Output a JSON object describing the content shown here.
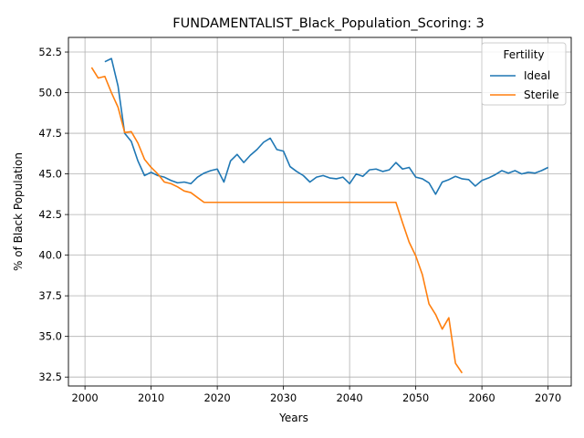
{
  "chart_data": {
    "type": "line",
    "title": "FUNDAMENTALIST_Black_Population_Scoring: 3",
    "xlabel": "Years",
    "ylabel": "% of Black Population",
    "xlim": [
      1997.5,
      2073.5
    ],
    "ylim": [
      31.95,
      53.4
    ],
    "xticks": [
      2000,
      2010,
      2020,
      2030,
      2040,
      2050,
      2060,
      2070
    ],
    "yticks": [
      32.5,
      35.0,
      37.5,
      40.0,
      42.5,
      45.0,
      47.5,
      50.0,
      52.5
    ],
    "ytick_labels": [
      "32.5",
      "35.0",
      "37.5",
      "40.0",
      "42.5",
      "45.0",
      "47.5",
      "50.0",
      "52.5"
    ],
    "grid": true,
    "legend": {
      "title": "Fertility",
      "placement": "top-right"
    },
    "series": [
      {
        "name": "Ideal",
        "color": "#1f77b4",
        "x": [
          2003,
          2004,
          2005,
          2006,
          2007,
          2008,
          2009,
          2010,
          2011,
          2012,
          2013,
          2014,
          2015,
          2016,
          2017,
          2018,
          2019,
          2020,
          2021,
          2022,
          2023,
          2024,
          2025,
          2026,
          2027,
          2028,
          2029,
          2030,
          2031,
          2032,
          2033,
          2034,
          2035,
          2036,
          2037,
          2038,
          2039,
          2040,
          2041,
          2042,
          2043,
          2044,
          2045,
          2046,
          2047,
          2048,
          2049,
          2050,
          2051,
          2052,
          2053,
          2054,
          2055,
          2056,
          2057,
          2058,
          2059,
          2060,
          2061,
          2062,
          2063,
          2064,
          2065,
          2066,
          2067,
          2068,
          2069,
          2070
        ],
        "y": [
          51.9,
          52.1,
          50.4,
          47.5,
          47.0,
          45.8,
          44.9,
          45.1,
          44.9,
          44.8,
          44.6,
          44.45,
          44.5,
          44.4,
          44.8,
          45.05,
          45.2,
          45.3,
          44.5,
          45.8,
          46.2,
          45.7,
          46.15,
          46.5,
          46.95,
          47.2,
          46.5,
          46.4,
          45.45,
          45.15,
          44.9,
          44.5,
          44.8,
          44.9,
          44.75,
          44.7,
          44.8,
          44.4,
          45.0,
          44.85,
          45.25,
          45.3,
          45.15,
          45.25,
          45.7,
          45.3,
          45.4,
          44.8,
          44.7,
          44.45,
          43.75,
          44.5,
          44.65,
          44.85,
          44.7,
          44.65,
          44.25,
          44.6,
          44.75,
          44.95,
          45.2,
          45.05,
          45.2,
          45.0,
          45.1,
          45.05,
          45.2,
          45.4
        ]
      },
      {
        "name": "Sterile",
        "color": "#ff7f0e",
        "x": [
          2001,
          2002,
          2003,
          2004,
          2005,
          2006,
          2007,
          2008,
          2009,
          2010,
          2011,
          2012,
          2013,
          2014,
          2015,
          2016,
          2017,
          2018,
          2019,
          2020,
          2021,
          2022,
          2023,
          2024,
          2025,
          2026,
          2027,
          2028,
          2029,
          2030,
          2031,
          2032,
          2033,
          2034,
          2035,
          2036,
          2037,
          2038,
          2039,
          2040,
          2041,
          2042,
          2043,
          2044,
          2045,
          2046,
          2047,
          2048,
          2049,
          2050,
          2051,
          2052,
          2053,
          2054,
          2055,
          2056,
          2057
        ],
        "y": [
          51.55,
          50.9,
          51.0,
          50.0,
          49.1,
          47.55,
          47.6,
          46.9,
          45.9,
          45.4,
          45.0,
          44.5,
          44.4,
          44.2,
          43.95,
          43.85,
          43.55,
          43.25,
          43.25,
          43.25,
          43.25,
          43.25,
          43.25,
          43.25,
          43.25,
          43.25,
          43.25,
          43.25,
          43.25,
          43.25,
          43.25,
          43.25,
          43.25,
          43.25,
          43.25,
          43.25,
          43.25,
          43.25,
          43.25,
          43.25,
          43.25,
          43.25,
          43.25,
          43.25,
          43.25,
          43.25,
          43.25,
          42.0,
          40.8,
          39.95,
          38.8,
          37.0,
          36.35,
          35.45,
          36.15,
          33.35,
          32.75
        ]
      }
    ]
  }
}
